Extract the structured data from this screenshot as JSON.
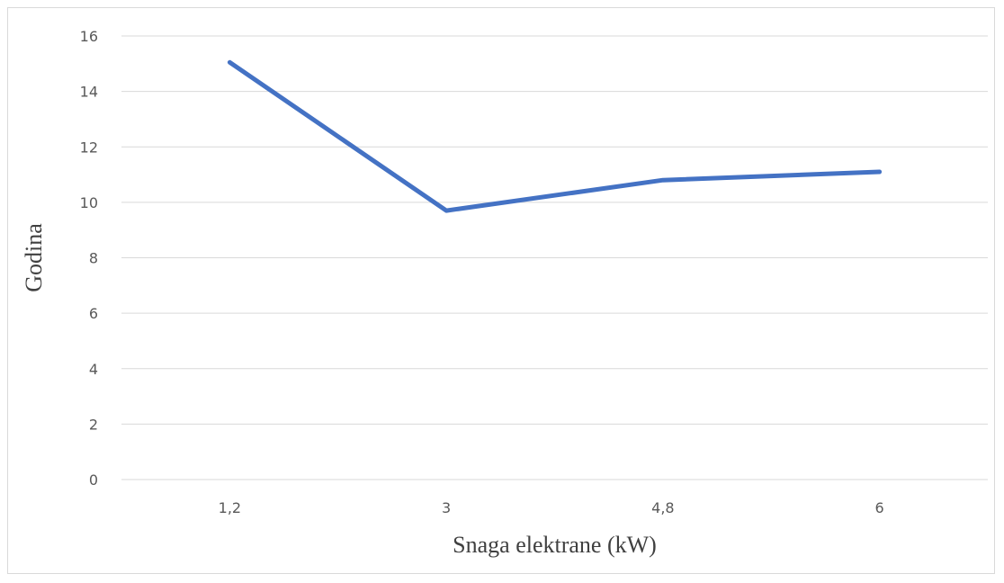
{
  "chart_data": {
    "type": "line",
    "categories": [
      "1,2",
      "3",
      "4,8",
      "6"
    ],
    "series": [
      {
        "values": [
          15.05,
          9.7,
          10.8,
          11.1
        ]
      }
    ],
    "xlabel": "Snaga elektrane (kW)",
    "ylabel": "Godina",
    "ylim": [
      0,
      16
    ],
    "yticks": [
      "0",
      "2",
      "4",
      "6",
      "8",
      "10",
      "12",
      "14",
      "16"
    ],
    "grid": true,
    "legend": "none",
    "colors": {
      "line": "#4472c4",
      "grid": "#d9d9d9"
    }
  }
}
